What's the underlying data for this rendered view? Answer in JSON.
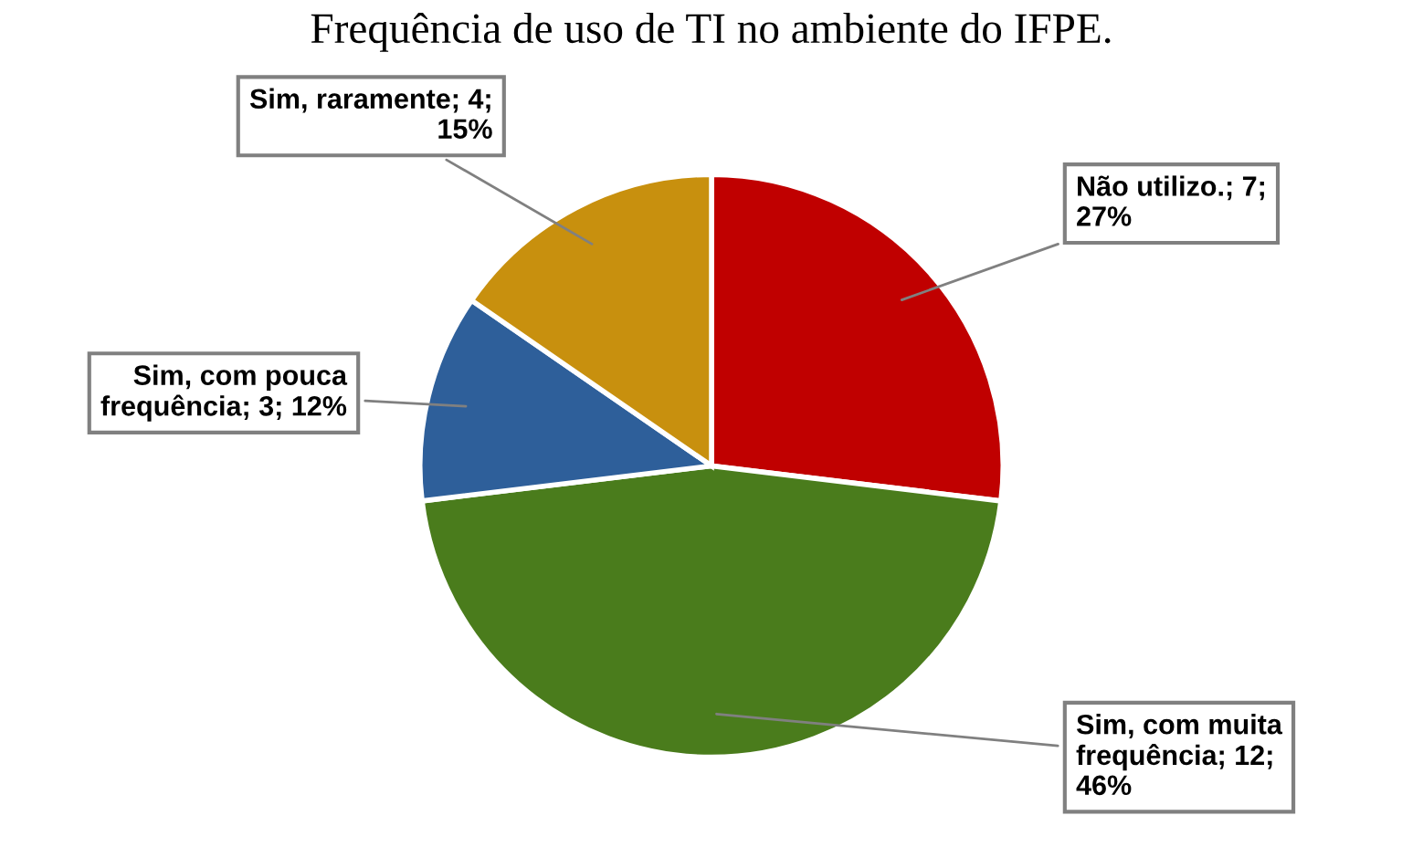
{
  "chart_data": {
    "type": "pie",
    "title": "Frequência de uso de TI no ambiente do IFPE.",
    "categories": [
      "Não utilizo.",
      "Sim, com muita frequência",
      "Sim, com pouca frequência",
      "Sim, raramente"
    ],
    "values": [
      7,
      12,
      3,
      4
    ],
    "value_labels": [
      "7; 27%",
      "12; 46%",
      "3; 12%",
      "4; 15%"
    ],
    "colors": [
      "#c00000",
      "#4a7c1c",
      "#2e5f9a",
      "#c8900e"
    ],
    "legend": false
  }
}
